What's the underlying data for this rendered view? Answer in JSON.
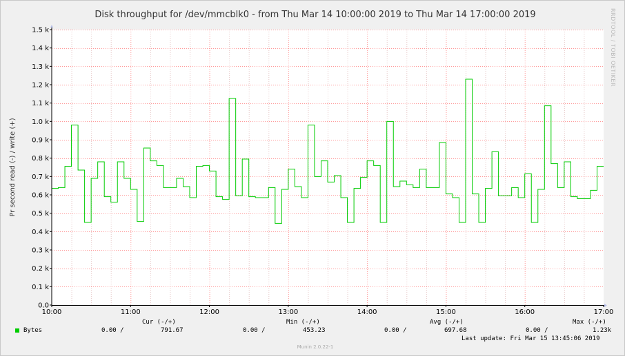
{
  "title": "Disk throughput for /dev/mmcblk0 - from Thu Mar 14 10:00:00 2019 to Thu Mar 14 17:00:00 2019",
  "side_label": "RRDTOOL / TOBI OETIKER",
  "version": "Munin 2.0.22-1",
  "legend": {
    "col_cur": "Cur (-/+)",
    "col_min": "Min (-/+)",
    "col_avg": "Avg (-/+)",
    "col_max": "Max (-/+)",
    "series_name": "Bytes",
    "cur_read": "0.00 /",
    "cur_write": "791.67",
    "min_read": "0.00 /",
    "min_write": "453.23",
    "avg_read": "0.00 /",
    "avg_write": "697.68",
    "max_read": "0.00 /",
    "max_write": "1.23k",
    "last_update": "Last update: Fri Mar 15 13:45:06 2019"
  },
  "colors": {
    "series": "#00cc00",
    "grid": "#ff9999",
    "axis": "#000000",
    "plot_bg": "#ffffff"
  },
  "chart_data": {
    "type": "line",
    "title": "Disk throughput for /dev/mmcblk0 - from Thu Mar 14 10:00:00 2019 to Thu Mar 14 17:00:00 2019",
    "ylabel": "Pr second read (-) / write (+)",
    "xlabel": "",
    "ylim": [
      0,
      1500
    ],
    "xlim": [
      "10:00",
      "17:00"
    ],
    "grid": true,
    "yticks": [
      "0.0",
      "0.1 k",
      "0.2 k",
      "0.3 k",
      "0.4 k",
      "0.5 k",
      "0.6 k",
      "0.7 k",
      "0.8 k",
      "0.9 k",
      "1.0 k",
      "1.1 k",
      "1.2 k",
      "1.3 k",
      "1.4 k",
      "1.5 k"
    ],
    "xticks": [
      "10:00",
      "11:00",
      "12:00",
      "13:00",
      "14:00",
      "15:00",
      "16:00",
      "17:00"
    ],
    "series": [
      {
        "name": "Bytes",
        "step": true,
        "x": [
          "10:00",
          "10:05",
          "10:10",
          "10:15",
          "10:20",
          "10:25",
          "10:30",
          "10:35",
          "10:40",
          "10:45",
          "10:50",
          "10:55",
          "11:00",
          "11:05",
          "11:10",
          "11:15",
          "11:20",
          "11:25",
          "11:30",
          "11:35",
          "11:40",
          "11:45",
          "11:50",
          "11:55",
          "12:00",
          "12:05",
          "12:10",
          "12:15",
          "12:20",
          "12:25",
          "12:30",
          "12:35",
          "12:40",
          "12:45",
          "12:50",
          "12:55",
          "13:00",
          "13:05",
          "13:10",
          "13:15",
          "13:20",
          "13:25",
          "13:30",
          "13:35",
          "13:40",
          "13:45",
          "13:50",
          "13:55",
          "14:00",
          "14:05",
          "14:10",
          "14:15",
          "14:20",
          "14:25",
          "14:30",
          "14:35",
          "14:40",
          "14:45",
          "14:50",
          "14:55",
          "15:00",
          "15:05",
          "15:10",
          "15:15",
          "15:20",
          "15:25",
          "15:30",
          "15:35",
          "15:40",
          "15:45",
          "15:50",
          "15:55",
          "16:00",
          "16:05",
          "16:10",
          "16:15",
          "16:20",
          "16:25",
          "16:30",
          "16:35",
          "16:40",
          "16:45",
          "16:50",
          "16:55"
        ],
        "values": [
          635,
          640,
          755,
          980,
          735,
          450,
          690,
          780,
          590,
          560,
          780,
          690,
          630,
          455,
          855,
          785,
          760,
          640,
          640,
          690,
          645,
          585,
          755,
          760,
          730,
          590,
          575,
          1125,
          595,
          795,
          590,
          585,
          585,
          640,
          445,
          630,
          740,
          645,
          585,
          980,
          700,
          785,
          670,
          705,
          585,
          450,
          635,
          695,
          785,
          760,
          450,
          1000,
          645,
          675,
          655,
          640,
          740,
          640,
          640,
          885,
          605,
          585,
          450,
          1230,
          605,
          450,
          635,
          835,
          595,
          595,
          640,
          585,
          715,
          450,
          630,
          1085,
          770,
          640,
          780,
          590,
          580,
          580,
          625,
          755
        ]
      }
    ]
  }
}
